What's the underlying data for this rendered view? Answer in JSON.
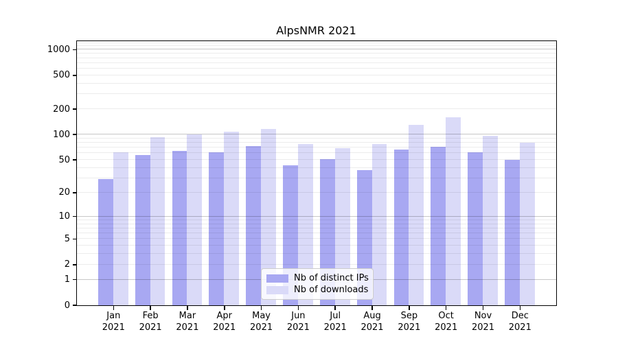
{
  "title": "AlpsNMR 2021",
  "year": "2021",
  "months": [
    "Jan",
    "Feb",
    "Mar",
    "Apr",
    "May",
    "Jun",
    "Jul",
    "Aug",
    "Sep",
    "Oct",
    "Nov",
    "Dec"
  ],
  "colors": {
    "distinct_ips_bar": "#a8a8f2",
    "downloads_bar": "#dadaf8",
    "major_gridline": "rgba(0,0,0,0.22)",
    "minor_gridline": "rgba(0,0,0,0.075)",
    "axis": "#000000",
    "legend_border": "#cccccc"
  },
  "legend": {
    "items": [
      {
        "label": "Nb of distinct IPs",
        "color": "#a8a8f2"
      },
      {
        "label": "Nb of downloads",
        "color": "#dadaf8"
      }
    ]
  },
  "y_axis": {
    "tick_values": [
      0,
      1,
      2,
      5,
      10,
      20,
      50,
      100,
      200,
      500,
      1000
    ],
    "tick_labels": [
      "0",
      "1",
      "2",
      "5",
      "10",
      "20",
      "50",
      "100",
      "200",
      "500",
      "1000"
    ]
  },
  "chart_data": {
    "type": "bar",
    "title": "AlpsNMR 2021",
    "categories": [
      "Jan 2021",
      "Feb 2021",
      "Mar 2021",
      "Apr 2021",
      "May 2021",
      "Jun 2021",
      "Jul 2021",
      "Aug 2021",
      "Sep 2021",
      "Oct 2021",
      "Nov 2021",
      "Dec 2021"
    ],
    "series": [
      {
        "name": "Nb of distinct IPs",
        "color": "#a8a8f2",
        "values": [
          29,
          57,
          63,
          61,
          72,
          43,
          51,
          37,
          66,
          71,
          61,
          50
        ]
      },
      {
        "name": "Nb of downloads",
        "color": "#dadaf8",
        "values": [
          61,
          92,
          100,
          107,
          115,
          76,
          69,
          77,
          130,
          160,
          96,
          80
        ]
      }
    ],
    "xlabel": "",
    "ylabel": "",
    "yscale": "log1p",
    "ylim": [
      0,
      1265
    ],
    "y_ticks": [
      0,
      1,
      2,
      5,
      10,
      20,
      50,
      100,
      200,
      500,
      1000
    ],
    "grid": "major gray lines at 1,10,100,1000; minor light lines at 2-9,20-90,200-900,1100; drawn over bars",
    "legend_position": "lower center"
  }
}
